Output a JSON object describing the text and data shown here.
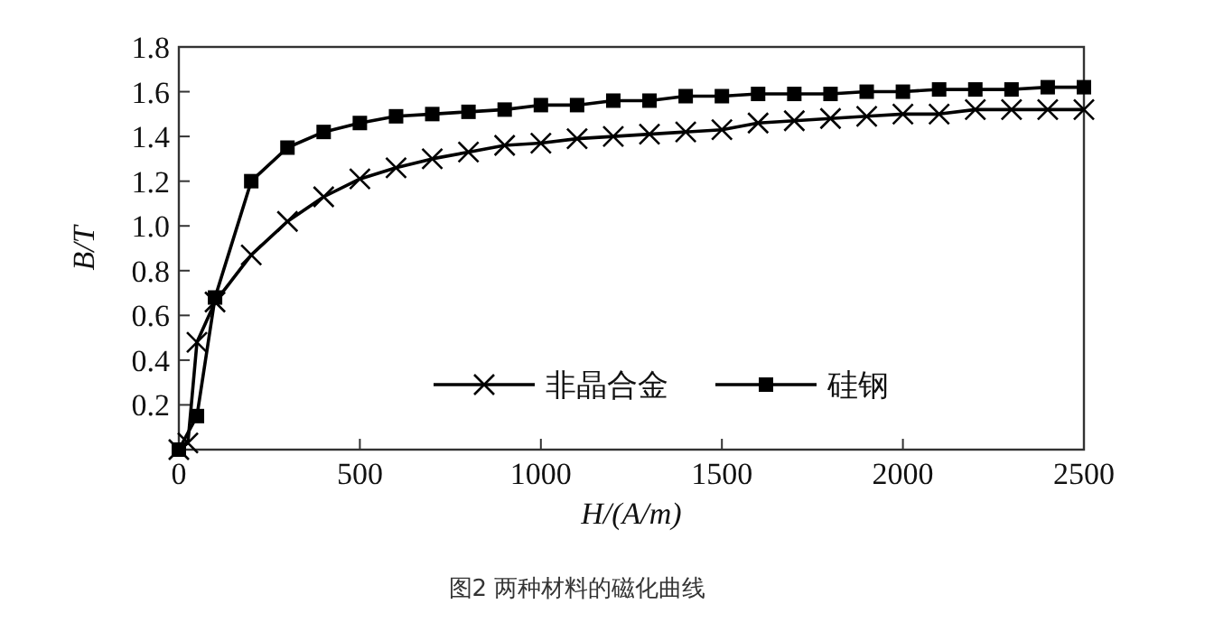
{
  "chart_data": {
    "type": "line",
    "xlabel": "H/(A/m)",
    "ylabel": "B/T",
    "annotations": [
      "图2  两种材料的磁化曲线"
    ],
    "xlim": [
      0,
      2500
    ],
    "ylim": [
      0,
      1.8
    ],
    "xticks": [
      0,
      500,
      1000,
      1500,
      2000,
      2500
    ],
    "yticks": [
      0.2,
      0.4,
      0.6,
      0.8,
      {
        "value": 1,
        "label": "1.0"
      },
      1.2,
      1.4,
      1.6,
      1.8
    ],
    "legend": "bottom",
    "series": [
      {
        "name": "非晶合金",
        "color": "#000000",
        "marker": "cross",
        "x": [
          0,
          25,
          50,
          100,
          200,
          300,
          400,
          500,
          600,
          700,
          800,
          900,
          1000,
          1100,
          1200,
          1300,
          1400,
          1500,
          1600,
          1700,
          1800,
          1900,
          2000,
          2100,
          2200,
          2300,
          2400,
          2500
        ],
        "values": [
          0,
          0.03,
          0.48,
          0.66,
          0.87,
          1.02,
          1.13,
          1.21,
          1.26,
          1.3,
          1.33,
          1.36,
          1.37,
          1.39,
          1.4,
          1.41,
          1.42,
          1.43,
          1.46,
          1.47,
          1.48,
          1.49,
          1.5,
          1.5,
          1.52,
          1.52,
          1.52,
          1.52
        ]
      },
      {
        "name": "硅钢",
        "color": "#000000",
        "marker": "square",
        "x": [
          0,
          50,
          100,
          200,
          300,
          400,
          500,
          600,
          700,
          800,
          900,
          1000,
          1100,
          1200,
          1300,
          1400,
          1500,
          1600,
          1700,
          1800,
          1900,
          2000,
          2100,
          2200,
          2300,
          2400,
          2500
        ],
        "values": [
          0,
          0.15,
          0.68,
          1.2,
          1.35,
          1.42,
          1.46,
          1.49,
          1.5,
          1.51,
          1.52,
          1.54,
          1.54,
          1.56,
          1.56,
          1.58,
          1.58,
          1.59,
          1.59,
          1.59,
          1.6,
          1.6,
          1.61,
          1.61,
          1.61,
          1.62,
          1.62
        ]
      }
    ]
  }
}
